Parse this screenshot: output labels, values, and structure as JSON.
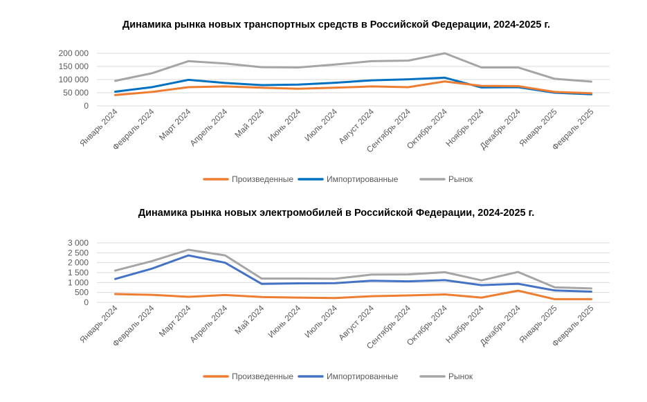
{
  "chart_data": [
    {
      "type": "line",
      "title": "Динамика рынка новых транспортных средств в Российской Федерации, 2024-2025 г.",
      "xlabel": "",
      "ylabel": "",
      "categories": [
        "Январь 2024",
        "Февраль 2024",
        "Март 2024",
        "Апрель 2024",
        "Май 2024",
        "Июнь 2024",
        "Июль 2024",
        "Август 2024",
        "Сентябрь 2024",
        "Октябрь 2024",
        "Ноябрь 2024",
        "Декабрь 2024",
        "Январь 2025",
        "Февраль 2025"
      ],
      "ylim": [
        0,
        200000
      ],
      "yticks": [
        0,
        50000,
        100000,
        150000,
        200000
      ],
      "ytick_labels": [
        "0",
        "50 000",
        "100 000",
        "150 000",
        "200 000"
      ],
      "grid": "horizontal",
      "legend_position": "bottom",
      "series": [
        {
          "name": "Произведенные",
          "color": "#ED7D31",
          "values": [
            41000,
            53000,
            71000,
            74000,
            69000,
            65000,
            69000,
            74000,
            71000,
            93000,
            76000,
            75000,
            53000,
            48000
          ]
        },
        {
          "name": "Импортированные",
          "color": "#0070C0",
          "values": [
            54000,
            71000,
            99000,
            87000,
            79000,
            81000,
            88000,
            97000,
            101000,
            107000,
            70000,
            71000,
            50000,
            44000
          ]
        },
        {
          "name": "Рынок",
          "color": "#A5A5A5",
          "values": [
            95000,
            124000,
            170000,
            161000,
            147000,
            146000,
            157000,
            170000,
            172000,
            200000,
            146000,
            146000,
            103000,
            92000
          ]
        }
      ]
    },
    {
      "type": "line",
      "title": "Динамика рынка новых электромобилей в Российской Федерации, 2024-2025 г.",
      "xlabel": "",
      "ylabel": "",
      "categories": [
        "Январь 2024",
        "Февраль 2024",
        "Март 2024",
        "Апрель 2024",
        "Май 2024",
        "Июнь 2024",
        "Июль 2024",
        "Август 2024",
        "Сентябрь 2024",
        "Октябрь 2024",
        "Ноябрь 2024",
        "Декабрь 2024",
        "Январь 2025",
        "Февраль 2025"
      ],
      "ylim": [
        0,
        3000
      ],
      "yticks": [
        0,
        500,
        1000,
        1500,
        2000,
        2500,
        3000
      ],
      "ytick_labels": [
        "0",
        "500",
        "1 000",
        "1 500",
        "2 000",
        "2 500",
        "3 000"
      ],
      "grid": "horizontal",
      "legend_position": "bottom",
      "series": [
        {
          "name": "Произведенные",
          "color": "#ED7D31",
          "values": [
            420,
            380,
            280,
            370,
            270,
            240,
            220,
            310,
            350,
            400,
            240,
            590,
            160,
            160
          ]
        },
        {
          "name": "Импортированные",
          "color": "#4472C4",
          "values": [
            1180,
            1700,
            2370,
            2000,
            930,
            960,
            970,
            1090,
            1060,
            1120,
            870,
            940,
            600,
            540
          ]
        },
        {
          "name": "Рынок",
          "color": "#A5A5A5",
          "values": [
            1600,
            2080,
            2650,
            2370,
            1200,
            1200,
            1190,
            1400,
            1410,
            1520,
            1110,
            1530,
            760,
            700
          ]
        }
      ]
    }
  ]
}
